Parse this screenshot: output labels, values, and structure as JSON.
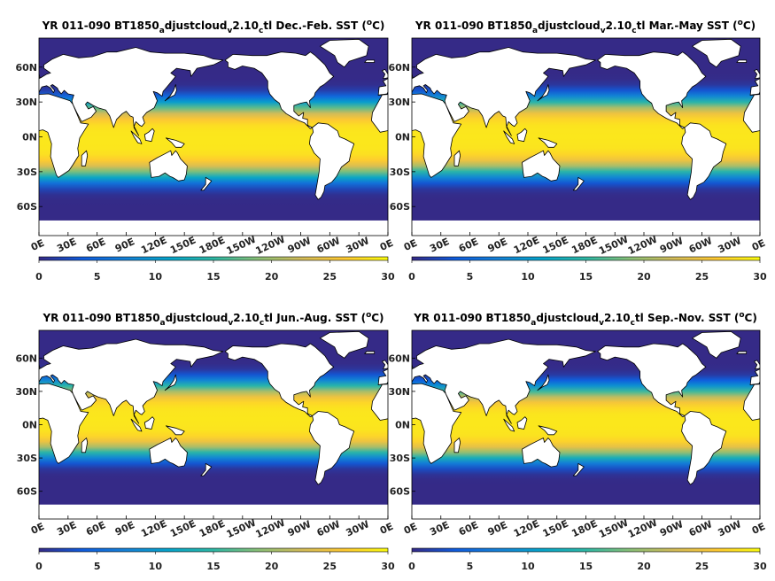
{
  "figure": {
    "panels": [
      {
        "title_main": "YR 011-090 BT1850",
        "title_sub1": "a",
        "title_mid": "djustcloud",
        "title_sub2": "v",
        "title_mid2": "2.10",
        "title_sub3": "c",
        "title_end": "tl Dec.-Feb. SST (",
        "title_sup": "o",
        "title_unit": "C)"
      },
      {
        "title_main": "YR 011-090 BT1850",
        "title_sub1": "a",
        "title_mid": "djustcloud",
        "title_sub2": "v",
        "title_mid2": "2.10",
        "title_sub3": "c",
        "title_end": "tl Mar.-May SST (",
        "title_sup": "o",
        "title_unit": "C)"
      },
      {
        "title_main": "YR 011-090 BT1850",
        "title_sub1": "a",
        "title_mid": "djustcloud",
        "title_sub2": "v",
        "title_mid2": "2.10",
        "title_sub3": "c",
        "title_end": "tl Jun.-Aug. SST (",
        "title_sup": "o",
        "title_unit": "C)"
      },
      {
        "title_main": "YR 011-090 BT1850",
        "title_sub1": "a",
        "title_mid": "djustcloud",
        "title_sub2": "v",
        "title_mid2": "2.10",
        "title_sub3": "c",
        "title_end": "tl Sep.-Nov. SST (",
        "title_sup": "o",
        "title_unit": "C)"
      }
    ]
  },
  "chart_data": [
    {
      "type": "heatmap",
      "season": "Dec.-Feb.",
      "variable": "SST",
      "unit": "oC",
      "x_ticks": [
        "0E",
        "30E",
        "60E",
        "90E",
        "120E",
        "150E",
        "180E",
        "150W",
        "120W",
        "90W",
        "60W",
        "30W",
        "0E"
      ],
      "y_ticks": [
        "60N",
        "30N",
        "0N",
        "30S",
        "60S"
      ],
      "y_values": [
        60,
        30,
        0,
        -30,
        -60
      ],
      "colorbar_ticks": [
        0,
        5,
        10,
        15,
        20,
        25,
        30
      ],
      "colorbar_range": [
        0,
        30
      ],
      "colormap": [
        "#352a87",
        "#0f5cdd",
        "#1481d6",
        "#06a4ca",
        "#2eb7a4",
        "#87bf77",
        "#d1bb59",
        "#fec832",
        "#f9fb0e"
      ]
    },
    {
      "type": "heatmap",
      "season": "Mar.-May",
      "variable": "SST",
      "unit": "oC",
      "x_ticks": [
        "0E",
        "30E",
        "60E",
        "90E",
        "120E",
        "150E",
        "180E",
        "150W",
        "120W",
        "90W",
        "60W",
        "30W",
        "0E"
      ],
      "y_ticks": [
        "60N",
        "30N",
        "0N",
        "30S",
        "60S"
      ],
      "y_values": [
        60,
        30,
        0,
        -30,
        -60
      ],
      "colorbar_ticks": [
        0,
        5,
        10,
        15,
        20,
        25,
        30
      ],
      "colorbar_range": [
        0,
        30
      ],
      "colormap": [
        "#352a87",
        "#0f5cdd",
        "#1481d6",
        "#06a4ca",
        "#2eb7a4",
        "#87bf77",
        "#d1bb59",
        "#fec832",
        "#f9fb0e"
      ]
    },
    {
      "type": "heatmap",
      "season": "Jun.-Aug.",
      "variable": "SST",
      "unit": "oC",
      "x_ticks": [
        "0E",
        "30E",
        "60E",
        "90E",
        "120E",
        "150E",
        "180E",
        "150W",
        "120W",
        "90W",
        "60W",
        "30W",
        "0E"
      ],
      "y_ticks": [
        "60N",
        "30N",
        "0N",
        "30S",
        "60S"
      ],
      "y_values": [
        60,
        30,
        0,
        -30,
        -60
      ],
      "colorbar_ticks": [
        0,
        5,
        10,
        15,
        20,
        25,
        30
      ],
      "colorbar_range": [
        0,
        30
      ],
      "colormap": [
        "#352a87",
        "#0f5cdd",
        "#1481d6",
        "#06a4ca",
        "#2eb7a4",
        "#87bf77",
        "#d1bb59",
        "#fec832",
        "#f9fb0e"
      ]
    },
    {
      "type": "heatmap",
      "season": "Sep.-Nov.",
      "variable": "SST",
      "unit": "oC",
      "x_ticks": [
        "0E",
        "30E",
        "60E",
        "90E",
        "120E",
        "150E",
        "180E",
        "150W",
        "120W",
        "90W",
        "60W",
        "30W",
        "0E"
      ],
      "y_ticks": [
        "60N",
        "30N",
        "0N",
        "30S",
        "60S"
      ],
      "y_values": [
        60,
        30,
        0,
        -30,
        -60
      ],
      "colorbar_ticks": [
        0,
        5,
        10,
        15,
        20,
        25,
        30
      ],
      "colorbar_range": [
        0,
        30
      ],
      "colormap": [
        "#352a87",
        "#0f5cdd",
        "#1481d6",
        "#06a4ca",
        "#2eb7a4",
        "#87bf77",
        "#d1bb59",
        "#fec832",
        "#f9fb0e"
      ]
    }
  ]
}
